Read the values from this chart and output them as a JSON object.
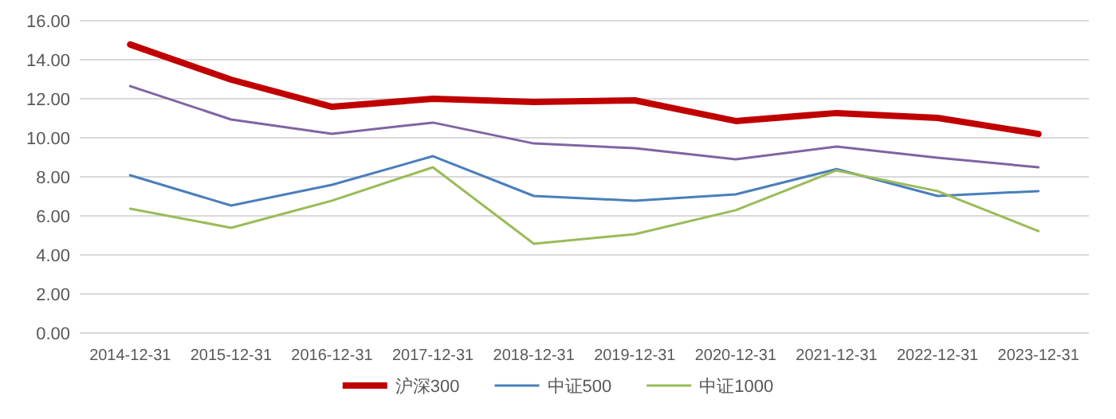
{
  "chart_data": {
    "type": "line",
    "categories": [
      "2014-12-31",
      "2015-12-31",
      "2016-12-31",
      "2017-12-31",
      "2018-12-31",
      "2019-12-31",
      "2020-12-31",
      "2021-12-31",
      "2022-12-31",
      "2023-12-31"
    ],
    "series": [
      {
        "name": "沪深300",
        "color": "#c00000",
        "values": [
          14.78,
          12.98,
          11.59,
          12.0,
          11.84,
          11.92,
          10.86,
          11.27,
          11.02,
          10.2
        ]
      },
      {
        "name": "中证500",
        "color": "#4a7ebb",
        "values": [
          8.08,
          6.53,
          7.59,
          9.06,
          7.02,
          6.78,
          7.1,
          8.4,
          7.02,
          7.27
        ]
      },
      {
        "name": "中证1000",
        "color": "#9bbb59",
        "values": [
          6.37,
          5.39,
          6.78,
          8.49,
          4.57,
          5.06,
          6.29,
          8.33,
          7.27,
          5.22
        ]
      },
      {
        "color": "#8064a2",
        "values": [
          12.65,
          10.94,
          10.2,
          10.78,
          9.71,
          9.47,
          8.9,
          9.55,
          8.98,
          8.49
        ]
      }
    ],
    "ylim": [
      0,
      16
    ],
    "yticks": [
      {
        "value": 0,
        "label": "0.00"
      },
      {
        "value": 2,
        "label": "2.00"
      },
      {
        "value": 4,
        "label": "4.00"
      },
      {
        "value": 6,
        "label": "6.00"
      },
      {
        "value": 8,
        "label": "8.00"
      },
      {
        "value": 10,
        "label": "10.00"
      },
      {
        "value": 12,
        "label": "12.00"
      },
      {
        "value": 14,
        "label": "14.00"
      },
      {
        "value": 16,
        "label": "16.00"
      }
    ],
    "grid": "y",
    "legend": "bottom",
    "marker": "none",
    "line_style": "solid"
  }
}
